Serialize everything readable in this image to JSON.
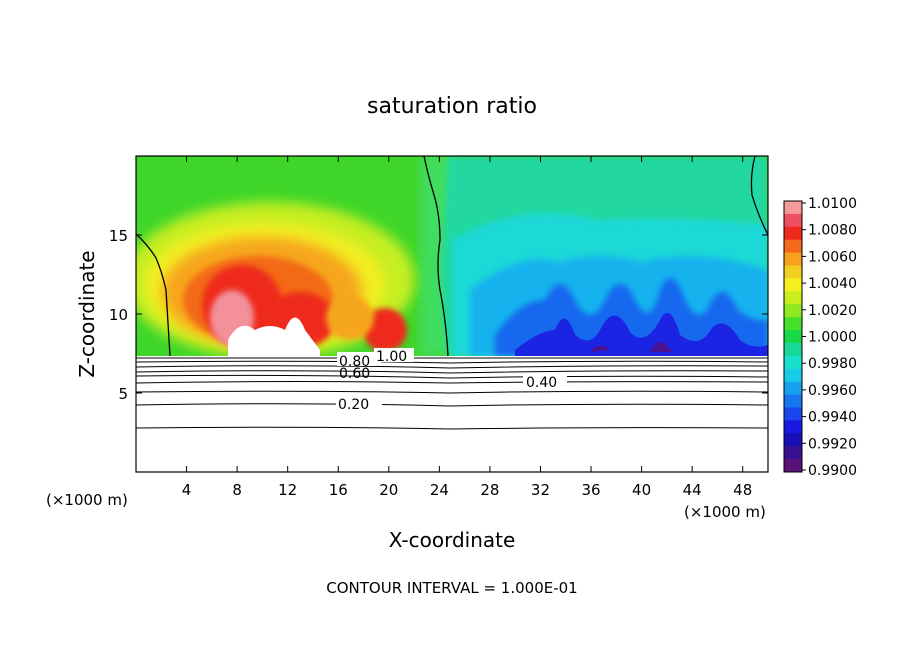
{
  "chart_data": {
    "type": "heatmap",
    "title": "saturation ratio",
    "xlabel": "X-coordinate",
    "ylabel": "Z-coordinate",
    "x_unit_label_left": "(×1000 m)",
    "x_unit_label_right": "(×1000 m)",
    "footer": "CONTOUR INTERVAL = 1.000E-01",
    "xlim": [
      0,
      50
    ],
    "ylim": [
      0,
      20
    ],
    "x_ticks": [
      4,
      8,
      12,
      16,
      20,
      24,
      28,
      32,
      36,
      40,
      44,
      48
    ],
    "y_ticks": [
      5,
      10,
      15
    ],
    "colorbar": {
      "ticks": [
        "1.0100",
        "1.0080",
        "1.0060",
        "1.0040",
        "1.0020",
        "1.0000",
        "0.9980",
        "0.9960",
        "0.9940",
        "0.9920",
        "0.9900"
      ],
      "colors": [
        "#f39a9a",
        "#ee5060",
        "#ee2a1e",
        "#f46a1a",
        "#f7a21c",
        "#f2cf20",
        "#f5ef20",
        "#c8ee20",
        "#8ee822",
        "#44e02a",
        "#18d848",
        "#18d898",
        "#18e0cc",
        "#18cce8",
        "#18a2ee",
        "#1876ee",
        "#1a46ee",
        "#1818e0",
        "#1810b4",
        "#3a1090",
        "#5a1278"
      ]
    },
    "cloud_base_z": 7.3,
    "contour_labels": [
      {
        "text": "1.00",
        "x": 16.8,
        "z": 7.0
      },
      {
        "text": "0.80",
        "x": 17.2,
        "z": 6.6
      },
      {
        "text": "0.60",
        "x": 17.2,
        "z": 6.3
      },
      {
        "text": "0.40",
        "x": 32.5,
        "z": 5.6
      },
      {
        "text": "0.20",
        "x": 17.7,
        "z": 4.3
      }
    ],
    "contour_levels_below_cloud": [
      {
        "value": 1.0,
        "z": 7.0
      },
      {
        "value": 0.9,
        "z": 6.8
      },
      {
        "value": 0.8,
        "z": 6.6
      },
      {
        "value": 0.7,
        "z": 6.4
      },
      {
        "value": 0.6,
        "z": 6.2
      },
      {
        "value": 0.5,
        "z": 5.9
      },
      {
        "value": 0.4,
        "z": 5.6
      },
      {
        "value": 0.3,
        "z": 5.1
      },
      {
        "value": 0.2,
        "z": 4.4
      },
      {
        "value": 0.1,
        "z": 2.9
      }
    ]
  }
}
